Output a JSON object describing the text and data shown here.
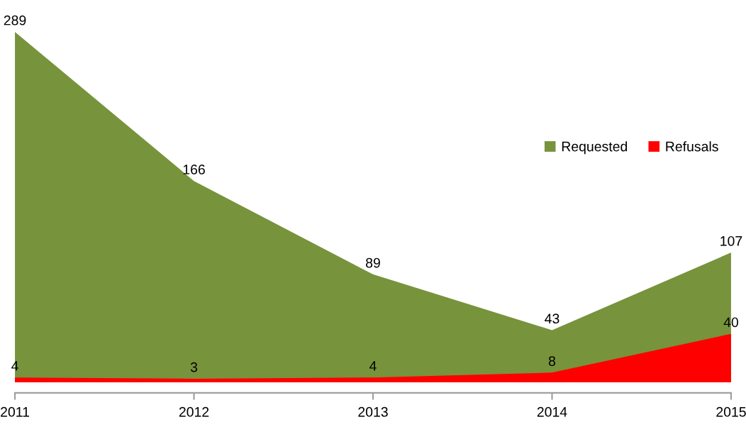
{
  "chart_data": {
    "type": "area",
    "categories": [
      "2011",
      "2012",
      "2013",
      "2014",
      "2015"
    ],
    "series": [
      {
        "name": "Requested",
        "color": "#77933c",
        "values": [
          289,
          166,
          89,
          43,
          107
        ]
      },
      {
        "name": "Refusals",
        "color": "#ff0000",
        "values": [
          4,
          3,
          4,
          8,
          40
        ]
      }
    ],
    "data_labels": true,
    "legend": "right",
    "grid": false,
    "tick_labels": "x"
  }
}
